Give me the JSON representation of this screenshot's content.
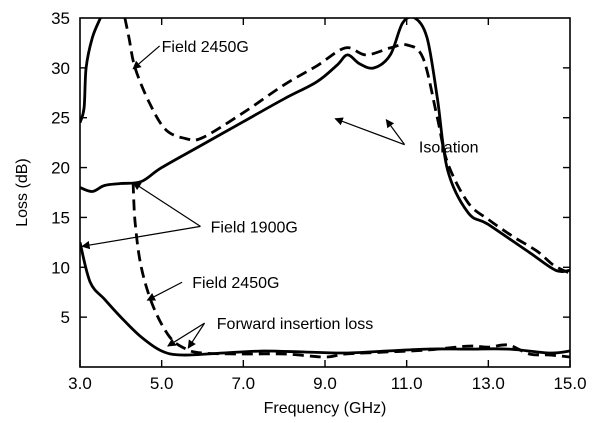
{
  "chart_data": {
    "type": "line",
    "title": "",
    "xlabel": "Frequency (GHz)",
    "ylabel": "Loss (dB)",
    "xlim": [
      3.0,
      15.0
    ],
    "ylim": [
      0,
      35
    ],
    "xticks": [
      3.0,
      5.0,
      7.0,
      9.0,
      11.0,
      13.0,
      15.0
    ],
    "xtick_labels": [
      "3.0",
      "5.0",
      "7.0",
      "9.0",
      "11.0",
      "13.0",
      "15.0"
    ],
    "yticks": [
      5,
      10,
      15,
      20,
      25,
      30,
      35
    ],
    "ytick_labels": [
      "5",
      "10",
      "15",
      "20",
      "25",
      "30",
      "35"
    ],
    "grid": false,
    "series": [
      {
        "style": "solid",
        "points": [
          [
            3.0,
            24.5
          ],
          [
            3.1,
            26
          ],
          [
            3.15,
            30
          ],
          [
            3.3,
            33
          ],
          [
            3.5,
            35
          ]
        ]
      },
      {
        "style": "solid",
        "points": [
          [
            3.0,
            18.0
          ],
          [
            3.3,
            17.6
          ],
          [
            3.6,
            18.2
          ],
          [
            4.0,
            18.4
          ],
          [
            4.5,
            18.6
          ],
          [
            5.0,
            20.0
          ],
          [
            6.0,
            22.3
          ],
          [
            7.0,
            24.6
          ],
          [
            8.0,
            26.9
          ],
          [
            8.8,
            28.6
          ],
          [
            9.3,
            30.3
          ],
          [
            9.55,
            31.3
          ],
          [
            9.85,
            30.4
          ],
          [
            10.2,
            30.0
          ],
          [
            10.6,
            31.3
          ],
          [
            10.9,
            34.5
          ],
          [
            11.2,
            35
          ],
          [
            11.5,
            33
          ],
          [
            11.75,
            27
          ],
          [
            12.0,
            19.8
          ],
          [
            12.5,
            15.5
          ],
          [
            13.0,
            14.3
          ],
          [
            14.0,
            11.5
          ],
          [
            14.65,
            9.7
          ],
          [
            15.0,
            9.7
          ]
        ]
      },
      {
        "style": "dashed",
        "points": [
          [
            4.1,
            35
          ],
          [
            4.2,
            33
          ],
          [
            4.35,
            30.0
          ],
          [
            4.7,
            26.5
          ],
          [
            5.1,
            23.8
          ],
          [
            5.6,
            22.9
          ],
          [
            6.0,
            23.0
          ],
          [
            7.0,
            25.5
          ],
          [
            8.0,
            28.3
          ],
          [
            8.8,
            30.2
          ],
          [
            9.5,
            32.0
          ],
          [
            10.0,
            31.3
          ],
          [
            10.6,
            32.0
          ],
          [
            11.0,
            32.3
          ],
          [
            11.4,
            31.0
          ],
          [
            11.75,
            25.0
          ],
          [
            12.0,
            20.5
          ],
          [
            12.5,
            16.5
          ],
          [
            13.0,
            14.8
          ],
          [
            13.6,
            13.1
          ],
          [
            14.2,
            11.6
          ],
          [
            14.6,
            10.2
          ],
          [
            15.0,
            9.4
          ]
        ]
      },
      {
        "style": "solid",
        "points": [
          [
            3.0,
            12.5
          ],
          [
            3.25,
            8.5
          ],
          [
            3.6,
            6.8
          ],
          [
            4.0,
            5.0
          ],
          [
            4.5,
            3.0
          ],
          [
            5.0,
            1.6
          ],
          [
            5.5,
            1.2
          ],
          [
            6.5,
            1.4
          ],
          [
            7.5,
            1.6
          ],
          [
            8.5,
            1.5
          ],
          [
            9.5,
            1.4
          ],
          [
            10.5,
            1.6
          ],
          [
            11.5,
            1.8
          ],
          [
            12.5,
            1.8
          ],
          [
            13.5,
            1.8
          ],
          [
            14.5,
            1.4
          ],
          [
            15.0,
            1.6
          ]
        ]
      },
      {
        "style": "dashed",
        "points": [
          [
            4.3,
            18.5
          ],
          [
            4.35,
            14.5
          ],
          [
            4.5,
            10.0
          ],
          [
            4.8,
            6.0
          ],
          [
            5.2,
            3.0
          ],
          [
            5.6,
            1.8
          ],
          [
            6.0,
            1.4
          ],
          [
            7.0,
            1.3
          ],
          [
            8.0,
            1.3
          ],
          [
            9.0,
            1.0
          ],
          [
            9.5,
            1.3
          ],
          [
            10.5,
            1.5
          ],
          [
            11.5,
            1.7
          ],
          [
            12.5,
            2.1
          ],
          [
            13.0,
            2.0
          ],
          [
            13.5,
            2.2
          ],
          [
            14.0,
            1.3
          ],
          [
            14.5,
            1.2
          ],
          [
            15.0,
            1.0
          ]
        ]
      }
    ],
    "annotations": [
      {
        "text": "Field 2450G",
        "anchor": [
          5.0,
          32.2
        ],
        "arrows": [
          {
            "from": [
              4.95,
              32.2
            ],
            "to": [
              4.3,
              29.9
            ]
          }
        ]
      },
      {
        "text": "Isolation",
        "anchor": [
          11.3,
          22.1
        ],
        "arrows": [
          {
            "from": [
              10.95,
              22.3
            ],
            "to": [
              9.25,
              24.9
            ]
          },
          {
            "from": [
              10.95,
              22.3
            ],
            "to": [
              10.5,
              24.8
            ]
          }
        ]
      },
      {
        "text": "Field 1900G",
        "anchor": [
          6.2,
          14.1
        ],
        "arrows": [
          {
            "from": [
              5.95,
              14.1
            ],
            "to": [
              4.3,
              18.5
            ]
          },
          {
            "from": [
              5.95,
              14.1
            ],
            "to": [
              3.05,
              12.1
            ]
          }
        ]
      },
      {
        "text": "Field 2450G",
        "anchor": [
          5.75,
          8.5
        ],
        "arrows": [
          {
            "from": [
              5.5,
              8.5
            ],
            "to": [
              4.65,
              6.7
            ]
          }
        ]
      },
      {
        "text": "Forward insertion loss",
        "anchor": [
          6.35,
          4.4
        ],
        "arrows": [
          {
            "from": [
              6.05,
              4.4
            ],
            "to": [
              5.15,
              2.1
            ]
          },
          {
            "from": [
              6.05,
              4.4
            ],
            "to": [
              5.65,
              1.9
            ]
          }
        ]
      }
    ]
  }
}
